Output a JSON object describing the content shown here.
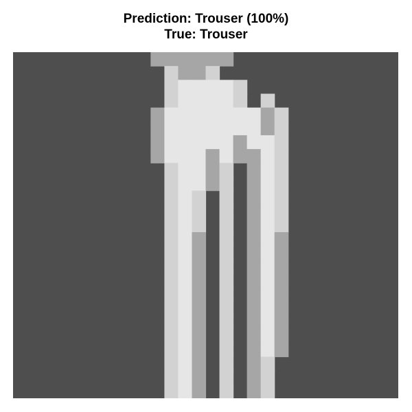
{
  "title": {
    "prediction": "Prediction: Trouser (100%)",
    "truth": "True: Trouser"
  },
  "image": {
    "subject": "trouser",
    "background_color": "#4e4e4e",
    "rows": [
      "0000000000??????000000000000",
      "00000000000O??O0000000000000",
      "00000000000OOOOOO00000000000",
      "00000000000OOOOOO0O000000000",
      "0000000000?OOOOOOO?O00000000",
      "0000000000?OOOOOOO?O00000000",
      "0000000000?OOOOO?OOO00000000",
      "0000000000?OOO?O??OO00000000",
      "00000000000OOO?O0?OO00000000",
      "00000000000OOO?O0?OO00000000",
      "00000000000OOO0O0?OO00000000",
      "00000000000OOO0O0?OO00000000",
      "00000000000OOO0O0?OO00000000",
      "00000000000OO?0O0?O?00000000",
      "00000000000OO?0O0?O?00000000",
      "00000000000OO?0O0?O?00000000",
      "00000000000OO?0O0?O?00000000",
      "00000000000OO?0O0?O?00000000",
      "00000000000OO?0O0?O?00000000",
      "00000000000OO?0O0?O?00000000",
      "00000000000OO?0O0?O?00000000",
      "00000000000OO?0O0?O?00000000",
      "00000000000OO?0O0?O000000000",
      "00000000000OO?0O0?O000000000",
      "00000000000OO?0O0?O000000000"
    ]
  }
}
